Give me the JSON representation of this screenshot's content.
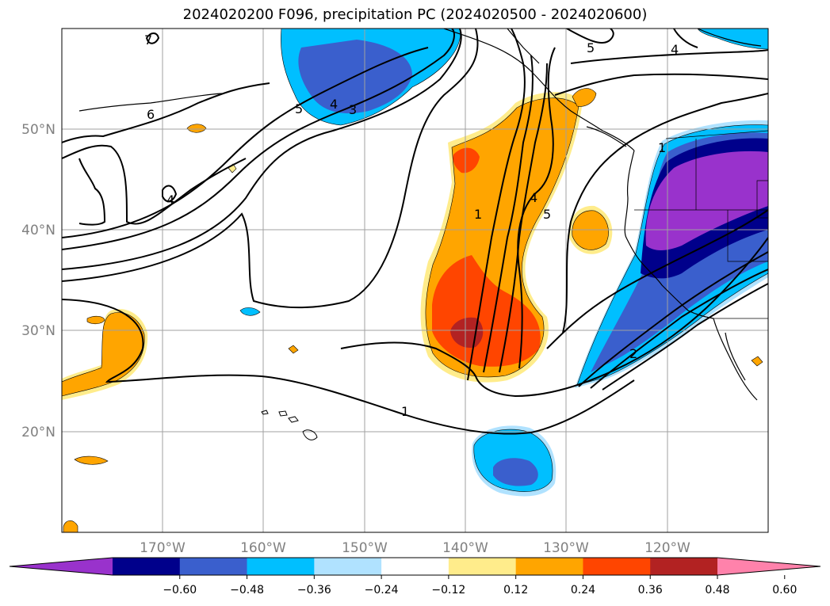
{
  "title": "2024020200 F096, precipitation PC (2024020500 - 2024020600)",
  "lat_labels": [
    "50°N",
    "40°N",
    "30°N",
    "20°N"
  ],
  "lon_labels": [
    "170°W",
    "160°W",
    "150°W",
    "140°W",
    "130°W",
    "120°W"
  ],
  "colorbar": {
    "ticks": [
      "−0.60",
      "−0.48",
      "−0.36",
      "−0.24",
      "−0.12",
      "0.12",
      "0.24",
      "0.36",
      "0.48",
      "0.60"
    ],
    "colors": [
      "#9932cc",
      "#00008b",
      "#3a5fcd",
      "#00bfff",
      "#b0e2ff",
      "#ffffff",
      "#ffec8b",
      "#ffa500",
      "#ff4500",
      "#b22222",
      "#ff82ab"
    ]
  },
  "contour_labels": [
    "7",
    "6",
    "5",
    "4",
    "3",
    "5",
    "4",
    "1",
    "5",
    "4",
    "1",
    "2",
    "1",
    "4"
  ],
  "colors": {
    "contour": "#000000",
    "grid": "#a0a0a0",
    "coast": "#000000"
  }
}
